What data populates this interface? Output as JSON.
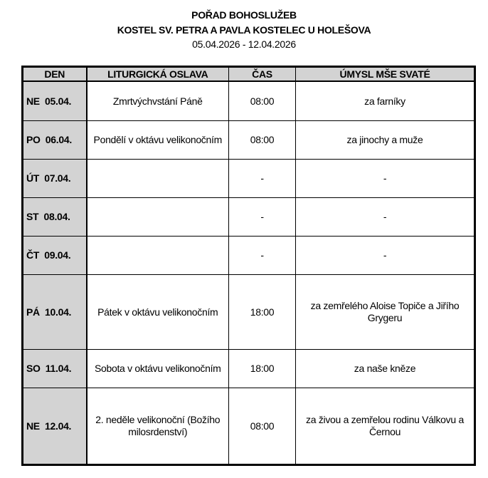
{
  "header": {
    "title": "POŘAD BOHOSLUŽEB",
    "church": "KOSTEL SV. PETRA A PAVLA KOSTELEC U HOLEŠOVA",
    "date_range": "05.04.2026 - 12.04.2026"
  },
  "table": {
    "columns": [
      "DEN",
      "LITURGICKÁ OSLAVA",
      "ČAS",
      "ÚMYSL MŠE SVATÉ"
    ],
    "rows": [
      {
        "day": "NE  05.04.",
        "celebration": "Zmrtvýchvstání Páně",
        "time": "08:00",
        "intention": "za farníky"
      },
      {
        "day": "PO  06.04.",
        "celebration": "Pondělí v oktávu velikonočním",
        "time": "08:00",
        "intention": "za jinochy a muže"
      },
      {
        "day": "ÚT  07.04.",
        "celebration": "",
        "time": "-",
        "intention": "-"
      },
      {
        "day": "ST  08.04.",
        "celebration": "",
        "time": "-",
        "intention": "-"
      },
      {
        "day": "ČT  09.04.",
        "celebration": "",
        "time": "-",
        "intention": "-"
      },
      {
        "day": "PÁ  10.04.",
        "celebration": "Pátek v oktávu velikonočním",
        "time": "18:00",
        "intention": "za zemřelého Aloise Topiče a Jiřího Grygeru"
      },
      {
        "day": "SO  11.04.",
        "celebration": "Sobota v oktávu velikonočním",
        "time": "18:00",
        "intention": "za naše kněze"
      },
      {
        "day": "NE  12.04.",
        "celebration": "2. neděle velikonoční (Božího milosrdenství)",
        "time": "08:00",
        "intention": "za živou a zemřelou rodinu Válkovu a Černou"
      }
    ]
  }
}
